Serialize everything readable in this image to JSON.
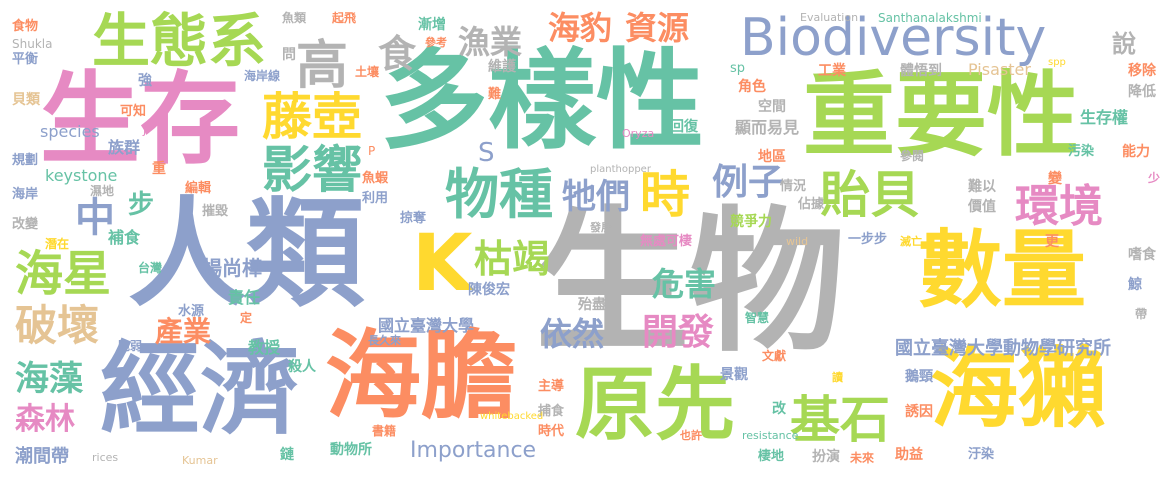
{
  "palette": {
    "pink": "#e68ac3",
    "blue": "#8da0cb",
    "green": "#66c2a5",
    "orange": "#fc8d62",
    "lime": "#a6d854",
    "yellow": "#ffd92f",
    "tan": "#e5c494",
    "gray": "#b3b3b3"
  },
  "words": {
    "w01": {
      "text": "生物",
      "color": "#b3b3b3"
    },
    "w02": {
      "text": "多樣性",
      "color": "#66c2a5"
    },
    "w03": {
      "text": "人類",
      "color": "#8da0cb"
    },
    "w04": {
      "text": "重要性",
      "color": "#a6d854"
    },
    "w05": {
      "text": "生存",
      "color": "#e68ac3"
    },
    "w06": {
      "text": "數量",
      "color": "#ffd92f"
    },
    "w07": {
      "text": "經濟",
      "color": "#8da0cb"
    },
    "w08": {
      "text": "海膽",
      "color": "#fc8d62"
    },
    "w09": {
      "text": "原先",
      "color": "#a6d854"
    },
    "w10": {
      "text": "海獺",
      "color": "#ffd92f"
    },
    "w11": {
      "text": "Biodiversity",
      "color": "#8da0cb"
    },
    "w12": {
      "text": "生態系",
      "color": "#a6d854"
    },
    "w13": {
      "text": "藤壺",
      "color": "#ffd92f"
    },
    "w14": {
      "text": "影響",
      "color": "#66c2a5"
    },
    "w15": {
      "text": "K",
      "color": "#ffd92f"
    },
    "w16": {
      "text": "物種",
      "color": "#66c2a5"
    },
    "w17": {
      "text": "貽貝",
      "color": "#a6d854"
    },
    "w18": {
      "text": "環境",
      "color": "#e68ac3"
    },
    "w19": {
      "text": "海星",
      "color": "#a6d854"
    },
    "w20": {
      "text": "基石",
      "color": "#a6d854"
    },
    "w21": {
      "text": "枯竭",
      "color": "#a6d854"
    },
    "w22": {
      "text": "高",
      "color": "#b3b3b3"
    },
    "w23": {
      "text": "食",
      "color": "#b3b3b3"
    },
    "w24": {
      "text": "漁業",
      "color": "#b3b3b3"
    },
    "w25": {
      "text": "海豹",
      "color": "#fc8d62"
    },
    "w26": {
      "text": "資源",
      "color": "#fc8d62"
    },
    "w27": {
      "text": "說",
      "color": "#b3b3b3"
    },
    "w28": {
      "text": "時",
      "color": "#ffd92f"
    },
    "w29": {
      "text": "例子",
      "color": "#8da0cb"
    },
    "w30": {
      "text": "牠們",
      "color": "#8da0cb"
    },
    "w31": {
      "text": "中",
      "color": "#8da0cb"
    },
    "w32": {
      "text": "步",
      "color": "#66c2a5"
    },
    "w33": {
      "text": "破壞",
      "color": "#e5c494"
    },
    "w34": {
      "text": "海藻",
      "color": "#66c2a5"
    },
    "w35": {
      "text": "森林",
      "color": "#e68ac3"
    },
    "w36": {
      "text": "潮間帶",
      "color": "#8da0cb"
    },
    "w37": {
      "text": "產業",
      "color": "#fc8d62"
    },
    "w38": {
      "text": "危害",
      "color": "#66c2a5"
    },
    "w39": {
      "text": "依然",
      "color": "#8da0cb"
    },
    "w40": {
      "text": "開發",
      "color": "#e68ac3"
    },
    "w41": {
      "text": "Importance",
      "color": "#8da0cb"
    },
    "w42": {
      "text": "S",
      "color": "#8da0cb"
    },
    "w43": {
      "text": "國立臺灣大學",
      "color": "#8da0cb"
    },
    "w44": {
      "text": "陳俊宏",
      "color": "#8da0cb"
    },
    "w45": {
      "text": "國立臺灣大學動物學研究所",
      "color": "#8da0cb"
    },
    "w46": {
      "text": "楊尚樺",
      "color": "#8da0cb"
    },
    "w47": {
      "text": "keystone",
      "color": "#66c2a5"
    },
    "w48": {
      "text": "species",
      "color": "#8da0cb"
    },
    "w49": {
      "text": "族群",
      "color": "#8da0cb"
    },
    "w50": {
      "text": "Pisaster",
      "color": "#e5c494"
    },
    "w51": {
      "text": "生存權",
      "color": "#66c2a5"
    },
    "w52": {
      "text": "顯而易見",
      "color": "#b3b3b3"
    },
    "w53": {
      "text": "教授",
      "color": "#66c2a5"
    },
    "w54": {
      "text": "殺人",
      "color": "#66c2a5"
    },
    "w55": {
      "text": "補食",
      "color": "#66c2a5"
    },
    "w56": {
      "text": "責任",
      "color": "#66c2a5"
    },
    "w57": {
      "text": "食物",
      "color": "#fc8d62"
    },
    "w58": {
      "text": "Shukla",
      "color": "#b3b3b3"
    },
    "w59": {
      "text": "平衡",
      "color": "#8da0cb"
    },
    "w60": {
      "text": "魚類",
      "color": "#b3b3b3"
    },
    "w61": {
      "text": "起飛",
      "color": "#fc8d62"
    },
    "w62": {
      "text": "漸增",
      "color": "#66c2a5"
    },
    "w63": {
      "text": "參考",
      "color": "#fc8d62"
    },
    "w64": {
      "text": "Evaluation",
      "color": "#b3b3b3"
    },
    "w65": {
      "text": "Santhanalakshmi",
      "color": "#66c2a5"
    },
    "w66": {
      "text": "問",
      "color": "#b3b3b3"
    },
    "w67": {
      "text": "土壤",
      "color": "#fc8d62"
    },
    "w68": {
      "text": "海岸線",
      "color": "#8da0cb"
    },
    "w69": {
      "text": "維護",
      "color": "#b3b3b3"
    },
    "w70": {
      "text": "sp",
      "color": "#66c2a5"
    },
    "w71": {
      "text": "工業",
      "color": "#fc8d62"
    },
    "w72": {
      "text": "體悟到",
      "color": "#b3b3b3"
    },
    "w73": {
      "text": "spp",
      "color": "#ffd92f"
    },
    "w74": {
      "text": "移除",
      "color": "#fc8d62"
    },
    "w75": {
      "text": "降低",
      "color": "#b3b3b3"
    },
    "w76": {
      "text": "強",
      "color": "#8da0cb"
    },
    "w77": {
      "text": "貝類",
      "color": "#e5c494"
    },
    "w78": {
      "text": "可知",
      "color": "#fc8d62"
    },
    "w79": {
      "text": "J",
      "color": "#e68ac3"
    },
    "w80": {
      "text": "難",
      "color": "#fc8d62"
    },
    "w81": {
      "text": "角色",
      "color": "#fc8d62"
    },
    "w82": {
      "text": "空間",
      "color": "#b3b3b3"
    },
    "w83": {
      "text": "回復",
      "color": "#66c2a5"
    },
    "w84": {
      "text": "Oryza",
      "color": "#e68ac3"
    },
    "w85": {
      "text": "規劃",
      "color": "#8da0cb"
    },
    "w86": {
      "text": "重",
      "color": "#fc8d62"
    },
    "w87": {
      "text": "P",
      "color": "#fc8d62"
    },
    "w88": {
      "text": "planthopper",
      "color": "#b3b3b3"
    },
    "w89": {
      "text": "地區",
      "color": "#fc8d62"
    },
    "w90": {
      "text": "參閱",
      "color": "#b3b3b3"
    },
    "w91": {
      "text": "污染",
      "color": "#66c2a5"
    },
    "w92": {
      "text": "能力",
      "color": "#fc8d62"
    },
    "w93": {
      "text": "海岸",
      "color": "#8da0cb"
    },
    "w94": {
      "text": "濕地",
      "color": "#b3b3b3"
    },
    "w95": {
      "text": "魚蝦",
      "color": "#fc8d62"
    },
    "w96": {
      "text": "情況",
      "color": "#b3b3b3"
    },
    "w97": {
      "text": "難以",
      "color": "#b3b3b3"
    },
    "w98": {
      "text": "變",
      "color": "#fc8d62"
    },
    "w99": {
      "text": "少",
      "color": "#e68ac3"
    },
    "w100": {
      "text": "改變",
      "color": "#b3b3b3"
    },
    "w101": {
      "text": "編輯",
      "color": "#fc8d62"
    },
    "w102": {
      "text": "利用",
      "color": "#8da0cb"
    },
    "w103": {
      "text": "佔據",
      "color": "#b3b3b3"
    },
    "w104": {
      "text": "價值",
      "color": "#b3b3b3"
    },
    "w105": {
      "text": "摧毀",
      "color": "#b3b3b3"
    },
    "w106": {
      "text": "掠奪",
      "color": "#8da0cb"
    },
    "w107": {
      "text": "競爭力",
      "color": "#a6d854"
    },
    "w108": {
      "text": "潛在",
      "color": "#ffd92f"
    },
    "w109": {
      "text": "發展",
      "color": "#b3b3b3"
    },
    "w110": {
      "text": "無處可棲",
      "color": "#e68ac3"
    },
    "w111": {
      "text": "一步步",
      "color": "#8da0cb"
    },
    "w112": {
      "text": "滅亡",
      "color": "#ffd92f"
    },
    "w113": {
      "text": "更",
      "color": "#fc8d62"
    },
    "w114": {
      "text": "嗜食",
      "color": "#b3b3b3"
    },
    "w115": {
      "text": "台灣",
      "color": "#66c2a5"
    },
    "w116": {
      "text": "wild",
      "color": "#e5c494"
    },
    "w117": {
      "text": "鯨",
      "color": "#8da0cb"
    },
    "w118": {
      "text": "水源",
      "color": "#8da0cb"
    },
    "w119": {
      "text": "定",
      "color": "#fc8d62"
    },
    "w120": {
      "text": "殆盡",
      "color": "#b3b3b3"
    },
    "w121": {
      "text": "智慧",
      "color": "#66c2a5"
    },
    "w122": {
      "text": "帶",
      "color": "#b3b3b3"
    },
    "w123": {
      "text": "脆弱",
      "color": "#8da0cb"
    },
    "w124": {
      "text": "長久來",
      "color": "#8da0cb"
    },
    "w125": {
      "text": "文獻",
      "color": "#fc8d62"
    },
    "w126": {
      "text": "鵝頸",
      "color": "#8da0cb"
    },
    "w127": {
      "text": "景觀",
      "color": "#8da0cb"
    },
    "w128": {
      "text": "主導",
      "color": "#fc8d62"
    },
    "w129": {
      "text": "讀",
      "color": "#ffd92f"
    },
    "w130": {
      "text": "捕食",
      "color": "#b3b3b3"
    },
    "w131": {
      "text": "改",
      "color": "#66c2a5"
    },
    "w132": {
      "text": "誘因",
      "color": "#fc8d62"
    },
    "w133": {
      "text": "書籍",
      "color": "#fc8d62"
    },
    "w134": {
      "text": "時代",
      "color": "#fc8d62"
    },
    "w135": {
      "text": "也許",
      "color": "#fc8d62"
    },
    "w136": {
      "text": "resistance",
      "color": "#66c2a5"
    },
    "w137": {
      "text": "rices",
      "color": "#b3b3b3"
    },
    "w138": {
      "text": "Kumar",
      "color": "#e5c494"
    },
    "w139": {
      "text": "鏈",
      "color": "#66c2a5"
    },
    "w140": {
      "text": "動物所",
      "color": "#66c2a5"
    },
    "w141": {
      "text": "whitebacked",
      "color": "#ffd92f"
    },
    "w142": {
      "text": "棲地",
      "color": "#66c2a5"
    },
    "w143": {
      "text": "扮演",
      "color": "#b3b3b3"
    },
    "w144": {
      "text": "未來",
      "color": "#fc8d62"
    },
    "w145": {
      "text": "助益",
      "color": "#fc8d62"
    },
    "w146": {
      "text": "汙染",
      "color": "#8da0cb"
    }
  }
}
